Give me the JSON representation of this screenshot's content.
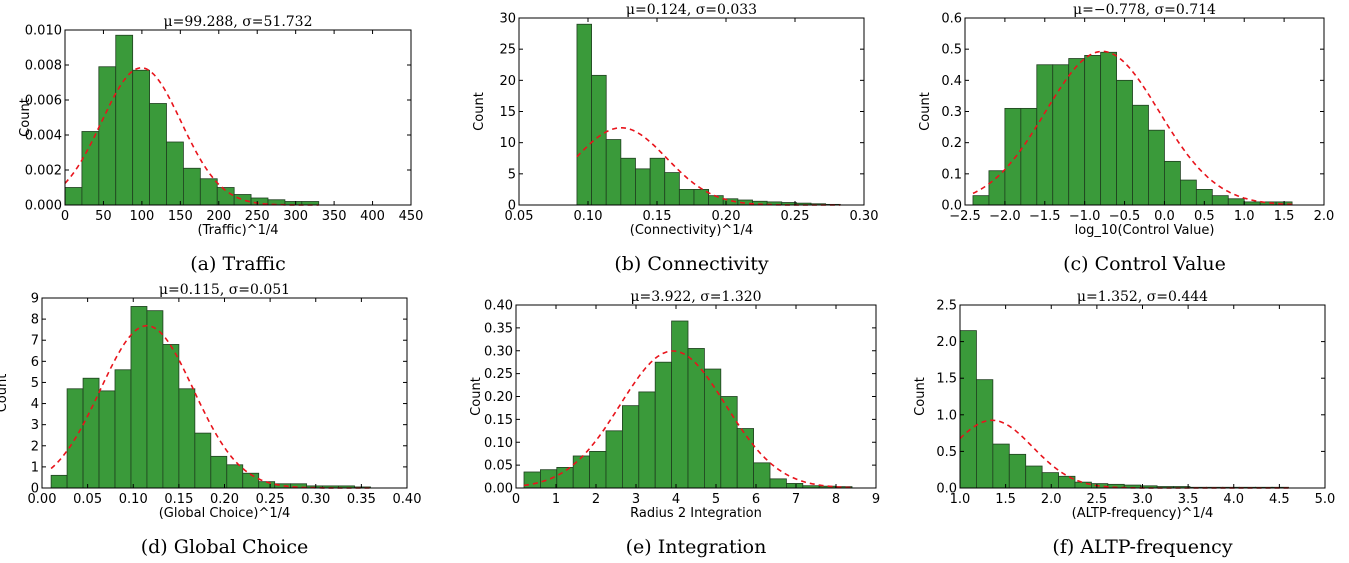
{
  "chart_data": [
    {
      "type": "histogram",
      "title": "μ=99.288, σ=51.732",
      "xlabel": "(Traffic)^1/4",
      "ylabel": "Count",
      "caption": "(a) Traffic",
      "xlim": [
        0,
        450
      ],
      "ylim": [
        0,
        0.01
      ],
      "xticks": [
        0,
        50,
        100,
        150,
        200,
        250,
        300,
        350,
        400,
        450
      ],
      "xtick_labels": [
        "0",
        "50",
        "100",
        "150",
        "200",
        "250",
        "300",
        "350",
        "400",
        "450"
      ],
      "yticks": [
        0,
        0.002,
        0.004,
        0.006,
        0.008,
        0.01
      ],
      "ytick_labels": [
        "0.000",
        "0.002",
        "0.004",
        "0.006",
        "0.008",
        "0.010"
      ],
      "bin_start": 0,
      "bin_width": 22,
      "values": [
        0.001,
        0.0042,
        0.0079,
        0.0097,
        0.0077,
        0.0058,
        0.0036,
        0.0021,
        0.0015,
        0.001,
        0.0006,
        0.0004,
        0.0003,
        0.0002,
        0.0002
      ],
      "mu": 99.288,
      "sigma": 51.732,
      "grid": false
    },
    {
      "type": "histogram",
      "title": "μ=0.124, σ=0.033",
      "xlabel": "(Connectivity)^1/4",
      "ylabel": "Count",
      "caption": "(b) Connectivity",
      "xlim": [
        0.05,
        0.3
      ],
      "ylim": [
        0,
        30
      ],
      "xticks": [
        0.05,
        0.1,
        0.15,
        0.2,
        0.25,
        0.3
      ],
      "xtick_labels": [
        "0.05",
        "0.10",
        "0.15",
        "0.20",
        "0.25",
        "0.30"
      ],
      "yticks": [
        0,
        5,
        10,
        15,
        20,
        25,
        30
      ],
      "ytick_labels": [
        "0",
        "5",
        "10",
        "15",
        "20",
        "25",
        "30"
      ],
      "bin_start": 0.092,
      "bin_width": 0.0106,
      "values": [
        29,
        20.8,
        10.5,
        7.5,
        5.8,
        7.5,
        5.2,
        2.5,
        2.5,
        1.5,
        1.0,
        0.8,
        0.6,
        0.5,
        0.4,
        0.3,
        0.2,
        0.1
      ],
      "mu": 0.124,
      "sigma": 0.033,
      "grid": false
    },
    {
      "type": "histogram",
      "title": "μ=−0.778, σ=0.714",
      "xlabel": "log_10(Control Value)",
      "ylabel": "Count",
      "caption": "(c) Control Value",
      "xlim": [
        -2.5,
        2.0
      ],
      "ylim": [
        0,
        0.6
      ],
      "xticks": [
        -2.5,
        -2.0,
        -1.5,
        -1.0,
        -0.5,
        0.0,
        0.5,
        1.0,
        1.5,
        2.0
      ],
      "xtick_labels": [
        "−2.5",
        "−2.0",
        "−1.5",
        "−1.0",
        "−0.5",
        "0.0",
        "0.5",
        "1.0",
        "1.5",
        "2.0"
      ],
      "yticks": [
        0,
        0.1,
        0.2,
        0.3,
        0.4,
        0.5,
        0.6
      ],
      "ytick_labels": [
        "0.0",
        "0.1",
        "0.2",
        "0.3",
        "0.4",
        "0.5",
        "0.6"
      ],
      "bin_start": -2.4,
      "bin_width": 0.2,
      "values": [
        0.03,
        0.11,
        0.31,
        0.31,
        0.45,
        0.45,
        0.47,
        0.48,
        0.49,
        0.4,
        0.32,
        0.24,
        0.14,
        0.08,
        0.05,
        0.03,
        0.02,
        0.01,
        0.01,
        0.01
      ],
      "mu": -0.778,
      "sigma": 0.714,
      "grid": false
    },
    {
      "type": "histogram",
      "title": "μ=0.115, σ=0.051",
      "xlabel": "(Global Choice)^1/4",
      "ylabel": "Count",
      "caption": "(d) Global Choice",
      "xlim": [
        0.0,
        0.4
      ],
      "ylim": [
        0,
        9
      ],
      "xticks": [
        0.0,
        0.05,
        0.1,
        0.15,
        0.2,
        0.25,
        0.3,
        0.35,
        0.4
      ],
      "xtick_labels": [
        "0.00",
        "0.05",
        "0.10",
        "0.15",
        "0.20",
        "0.25",
        "0.30",
        "0.35",
        "0.40"
      ],
      "yticks": [
        0,
        1,
        2,
        3,
        4,
        5,
        6,
        7,
        8,
        9
      ],
      "ytick_labels": [
        "0",
        "1",
        "2",
        "3",
        "4",
        "5",
        "6",
        "7",
        "8",
        "9"
      ],
      "bin_start": 0.01,
      "bin_width": 0.0175,
      "values": [
        0.6,
        4.7,
        5.2,
        4.6,
        5.6,
        8.6,
        8.4,
        6.8,
        4.7,
        2.6,
        1.5,
        1.1,
        0.7,
        0.3,
        0.2,
        0.2,
        0.1,
        0.1,
        0.1,
        0.05
      ],
      "mu": 0.115,
      "sigma": 0.051,
      "grid": false
    },
    {
      "type": "histogram",
      "title": "μ=3.922, σ=1.320",
      "xlabel": "Radius 2 Integration",
      "ylabel": "Count",
      "caption": "(e) Integration",
      "xlim": [
        0,
        9
      ],
      "ylim": [
        0,
        0.4
      ],
      "xticks": [
        0,
        1,
        2,
        3,
        4,
        5,
        6,
        7,
        8,
        9
      ],
      "xtick_labels": [
        "0",
        "1",
        "2",
        "3",
        "4",
        "5",
        "6",
        "7",
        "8",
        "9"
      ],
      "yticks": [
        0,
        0.05,
        0.1,
        0.15,
        0.2,
        0.25,
        0.3,
        0.35,
        0.4
      ],
      "ytick_labels": [
        "0.00",
        "0.05",
        "0.10",
        "0.15",
        "0.20",
        "0.25",
        "0.30",
        "0.35",
        "0.40"
      ],
      "bin_start": 0.2,
      "bin_width": 0.41,
      "values": [
        0.035,
        0.04,
        0.045,
        0.07,
        0.08,
        0.125,
        0.18,
        0.21,
        0.275,
        0.365,
        0.305,
        0.26,
        0.2,
        0.13,
        0.055,
        0.02,
        0.01,
        0.005,
        0.004,
        0.003
      ],
      "mu": 3.922,
      "sigma": 1.32,
      "grid": false
    },
    {
      "type": "histogram",
      "title": "μ=1.352, σ=0.444",
      "xlabel": "(ALTP-frequency)^1/4",
      "ylabel": "Count",
      "caption": "(f) ALTP-frequency",
      "xlim": [
        1.0,
        5.0
      ],
      "ylim": [
        0,
        2.5
      ],
      "xticks": [
        1.0,
        1.5,
        2.0,
        2.5,
        3.0,
        3.5,
        4.0,
        4.5,
        5.0
      ],
      "xtick_labels": [
        "1.0",
        "1.5",
        "2.0",
        "2.5",
        "3.0",
        "3.5",
        "4.0",
        "4.5",
        "5.0"
      ],
      "yticks": [
        0,
        0.5,
        1.0,
        1.5,
        2.0,
        2.5
      ],
      "ytick_labels": [
        "0.0",
        "0.5",
        "1.0",
        "1.5",
        "2.0",
        "2.5"
      ],
      "bin_start": 1.0,
      "bin_width": 0.18,
      "values": [
        2.15,
        1.48,
        0.6,
        0.46,
        0.3,
        0.21,
        0.16,
        0.08,
        0.06,
        0.05,
        0.04,
        0.03,
        0.02,
        0.02,
        0.01,
        0.01,
        0.01,
        0.01,
        0.01,
        0.01
      ],
      "mu": 1.352,
      "sigma": 0.444,
      "grid": false
    }
  ]
}
